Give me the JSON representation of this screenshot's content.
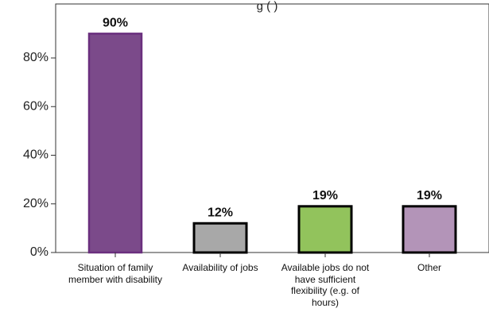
{
  "chart_data": {
    "type": "bar",
    "title": "",
    "title_visible": "g              (                    )",
    "xlabel": "",
    "ylabel": "",
    "categories": [
      "Situation of family member with disability",
      "Availability of jobs",
      "Available jobs do not have sufficient flexibility (e.g. of hours)",
      "Other"
    ],
    "values": [
      90,
      12,
      19,
      19
    ],
    "value_labels": [
      "90%",
      "12%",
      "19%",
      "19%"
    ],
    "yticks": [
      0,
      20,
      40,
      60,
      80
    ],
    "ytick_labels": [
      "0%",
      "20%",
      "40%",
      "60%",
      "80%"
    ],
    "ylim": [
      0,
      100
    ],
    "grid": false,
    "legend": "none",
    "bar_colors": [
      "#7b4a8a",
      "#a8a8a8",
      "#92c35c",
      "#b394b8"
    ],
    "bar_edge_colors": [
      "#6a2f7e",
      "#000000",
      "#000000",
      "#000000"
    ]
  }
}
